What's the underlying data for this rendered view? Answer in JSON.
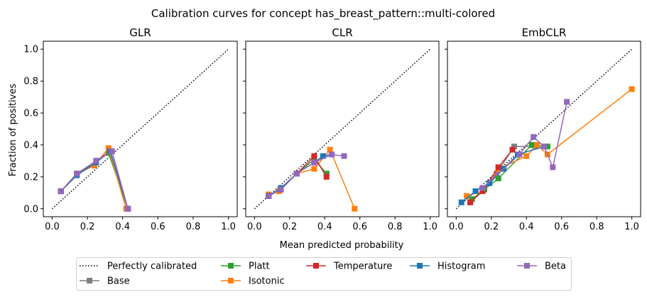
{
  "chart_data": {
    "type": "line",
    "suptitle": "Calibration curves for concept has_breast_pattern::multi-colored",
    "xlabel": "Mean predicted probability",
    "ylabel": "Fraction of positives",
    "xlim": [
      -0.05,
      1.05
    ],
    "ylim": [
      -0.05,
      1.05
    ],
    "xticks": [
      "0.0",
      "0.2",
      "0.4",
      "0.6",
      "0.8",
      "1.0"
    ],
    "yticks": [
      "0.0",
      "0.2",
      "0.4",
      "0.6",
      "0.8",
      "1.0"
    ],
    "legend": {
      "placement": "bottom-center",
      "entries": [
        {
          "key": "perfect",
          "label": "Perfectly calibrated"
        },
        {
          "key": "base",
          "label": "Base"
        },
        {
          "key": "platt",
          "label": "Platt"
        },
        {
          "key": "isotonic",
          "label": "Isotonic"
        },
        {
          "key": "temperature",
          "label": "Temperature"
        },
        {
          "key": "histogram",
          "label": "Histogram"
        },
        {
          "key": "beta",
          "label": "Beta"
        }
      ]
    },
    "colors": {
      "perfect": "#000000",
      "base": "#7f7f7f",
      "platt": "#2ca02c",
      "isotonic": "#ff7f0e",
      "temperature": "#d62728",
      "histogram": "#1f77b4",
      "beta": "#9467bd"
    },
    "panels": [
      {
        "title": "GLR",
        "series": [
          {
            "key": "base",
            "x": [
              0.05,
              0.14,
              0.25,
              0.33,
              0.43
            ],
            "y": [
              0.11,
              0.22,
              0.3,
              0.36,
              0.0
            ]
          },
          {
            "key": "platt",
            "x": [
              0.05,
              0.14,
              0.25,
              0.32,
              0.43
            ],
            "y": [
              0.11,
              0.21,
              0.3,
              0.35,
              0.0
            ]
          },
          {
            "key": "isotonic",
            "x": [
              0.05,
              0.14,
              0.24,
              0.32,
              0.42
            ],
            "y": [
              0.11,
              0.22,
              0.27,
              0.38,
              0.0
            ]
          },
          {
            "key": "temperature",
            "x": [
              0.05,
              0.14,
              0.25,
              0.33,
              0.43
            ],
            "y": [
              0.11,
              0.22,
              0.3,
              0.36,
              0.0
            ]
          },
          {
            "key": "histogram",
            "x": [
              0.05,
              0.14,
              0.25,
              0.33,
              0.43
            ],
            "y": [
              0.11,
              0.21,
              0.29,
              0.36,
              0.0
            ]
          },
          {
            "key": "beta",
            "x": [
              0.05,
              0.14,
              0.25,
              0.34,
              0.43
            ],
            "y": [
              0.11,
              0.22,
              0.3,
              0.36,
              0.0
            ]
          }
        ]
      },
      {
        "title": "CLR",
        "series": [
          {
            "key": "base",
            "x": [
              0.08,
              0.15,
              0.24,
              0.34,
              0.41
            ],
            "y": [
              0.08,
              0.12,
              0.22,
              0.31,
              0.22
            ]
          },
          {
            "key": "platt",
            "x": [
              0.08,
              0.15,
              0.24,
              0.34,
              0.41
            ],
            "y": [
              0.08,
              0.12,
              0.22,
              0.31,
              0.22
            ]
          },
          {
            "key": "isotonic",
            "x": [
              0.08,
              0.14,
              0.24,
              0.34,
              0.43,
              0.57
            ],
            "y": [
              0.09,
              0.11,
              0.22,
              0.25,
              0.37,
              0.0
            ]
          },
          {
            "key": "temperature",
            "x": [
              0.08,
              0.15,
              0.24,
              0.34,
              0.41
            ],
            "y": [
              0.08,
              0.12,
              0.22,
              0.33,
              0.2
            ]
          },
          {
            "key": "histogram",
            "x": [
              0.08,
              0.15,
              0.24,
              0.34,
              0.39,
              0.44
            ],
            "y": [
              0.08,
              0.13,
              0.22,
              0.29,
              0.33,
              0.34
            ]
          },
          {
            "key": "beta",
            "x": [
              0.08,
              0.15,
              0.24,
              0.34,
              0.44,
              0.51
            ],
            "y": [
              0.08,
              0.12,
              0.22,
              0.29,
              0.34,
              0.33
            ]
          }
        ]
      },
      {
        "title": "EmbCLR",
        "series": [
          {
            "key": "base",
            "x": [
              0.08,
              0.16,
              0.23,
              0.33,
              0.45
            ],
            "y": [
              0.04,
              0.12,
              0.22,
              0.39,
              0.39
            ]
          },
          {
            "key": "platt",
            "x": [
              0.09,
              0.16,
              0.24,
              0.43,
              0.52
            ],
            "y": [
              0.06,
              0.12,
              0.19,
              0.4,
              0.39
            ]
          },
          {
            "key": "isotonic",
            "x": [
              0.06,
              0.15,
              0.24,
              0.4,
              0.46,
              0.52,
              1.0
            ],
            "y": [
              0.08,
              0.11,
              0.25,
              0.33,
              0.4,
              0.34,
              0.75
            ]
          },
          {
            "key": "temperature",
            "x": [
              0.08,
              0.15,
              0.24,
              0.32
            ],
            "y": [
              0.04,
              0.11,
              0.26,
              0.37
            ]
          },
          {
            "key": "histogram",
            "x": [
              0.03,
              0.11,
              0.19,
              0.27,
              0.35,
              0.5
            ],
            "y": [
              0.04,
              0.11,
              0.16,
              0.25,
              0.34,
              0.39
            ]
          },
          {
            "key": "beta",
            "x": [
              0.15,
              0.36,
              0.44,
              0.5,
              0.55,
              0.63
            ],
            "y": [
              0.13,
              0.34,
              0.45,
              0.39,
              0.26,
              0.67
            ]
          }
        ]
      }
    ]
  }
}
